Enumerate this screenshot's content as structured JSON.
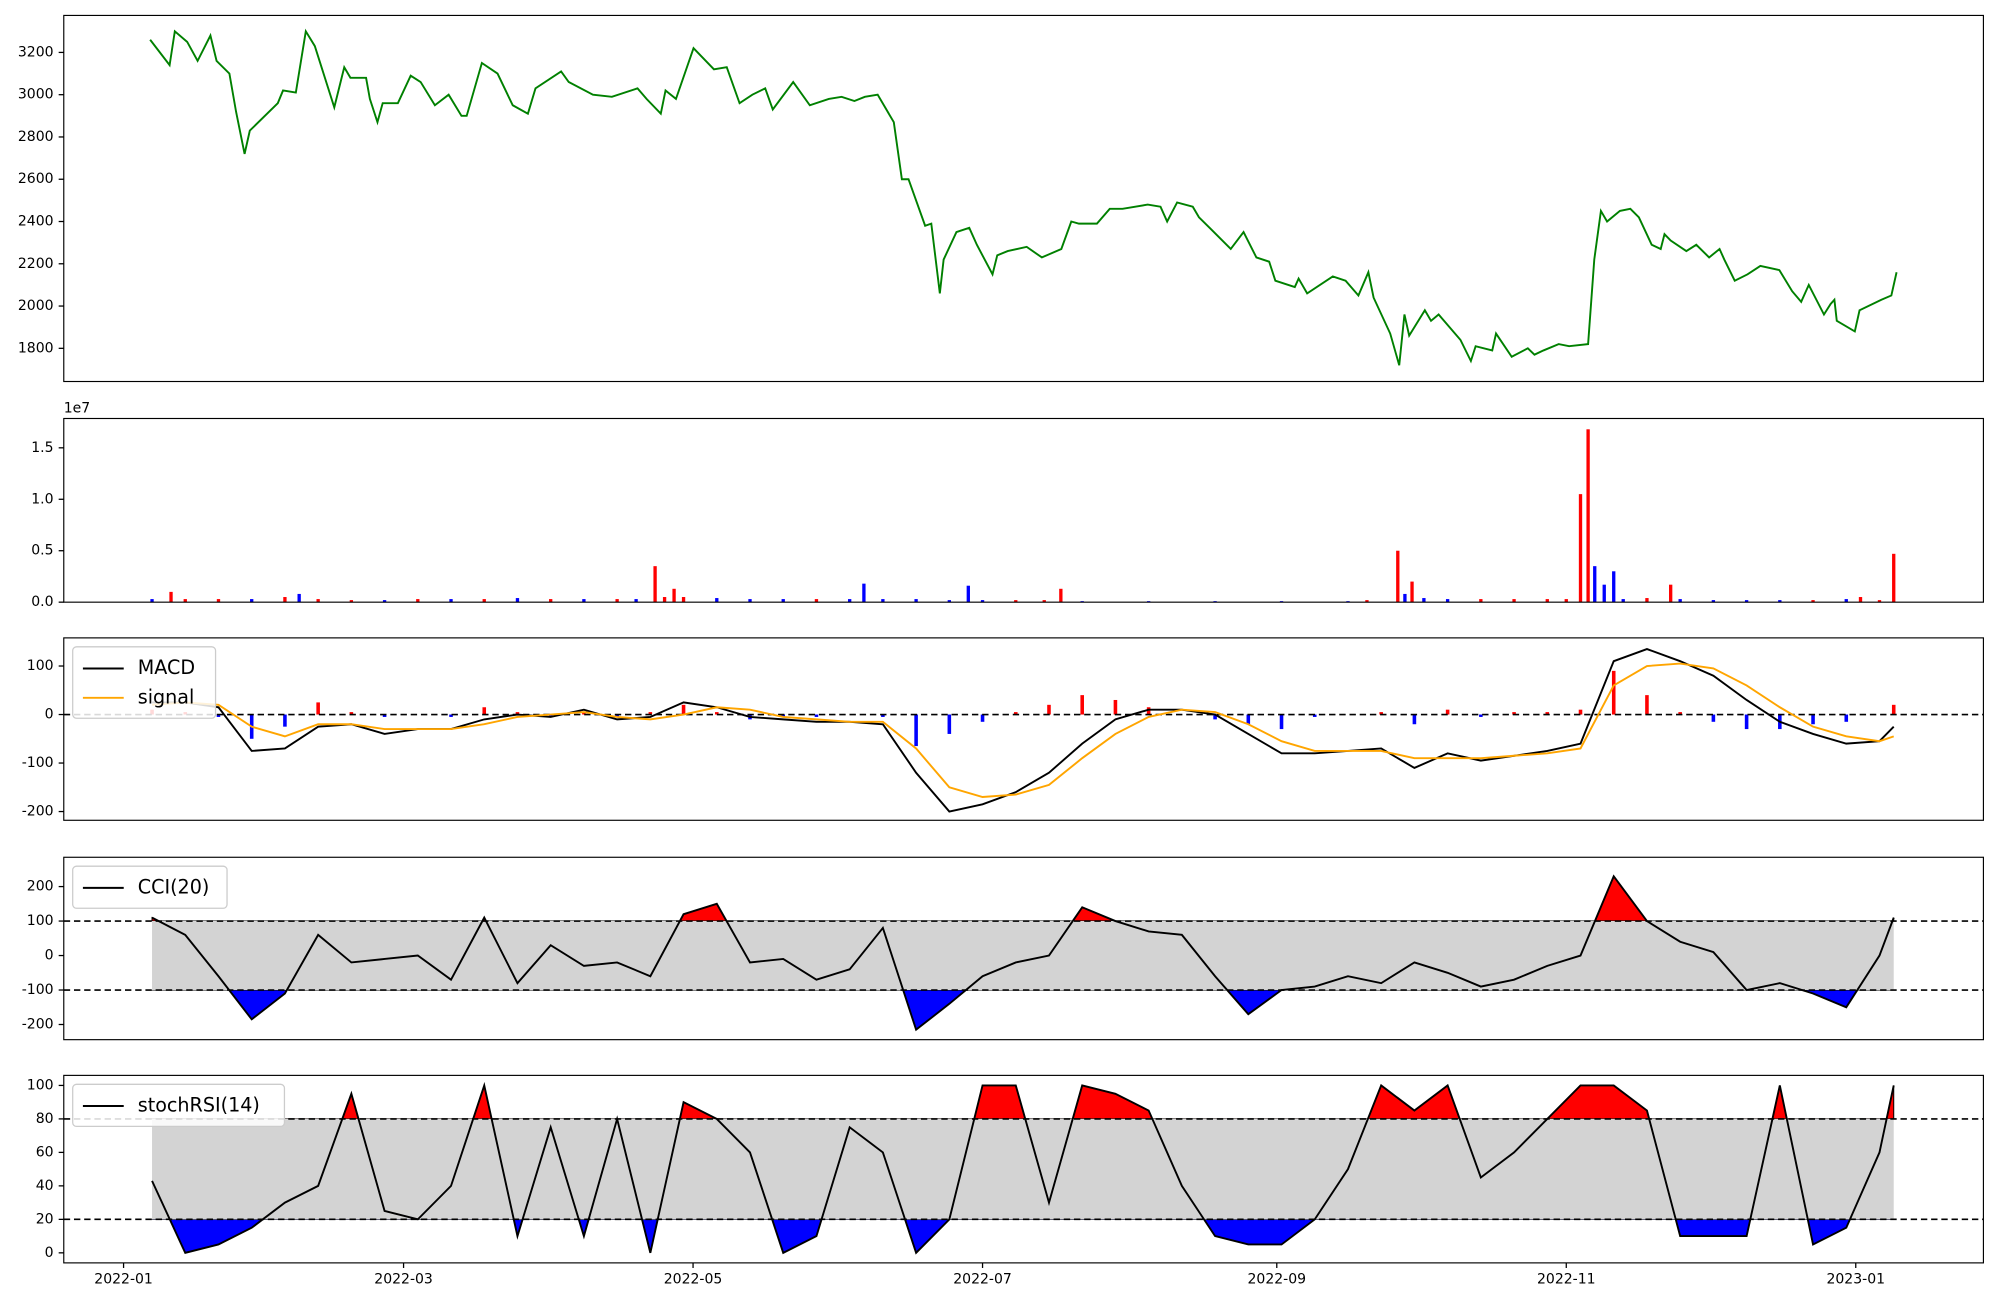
{
  "chart_data": [
    {
      "type": "line",
      "xlim": [
        -12.6,
        391.9
      ],
      "ylim": [
        1643,
        3375
      ],
      "yticks": [
        1800,
        2000,
        2200,
        2400,
        2600,
        2800,
        3000,
        3200
      ],
      "x": [
        5.6,
        9.7,
        10.8,
        13.4,
        15.6,
        18.3,
        19.6,
        22.3,
        23.7,
        25.5,
        26.6,
        32.5,
        33.6,
        36.3,
        38.4,
        40.3,
        44.4,
        46.5,
        47.8,
        51.1,
        51.9,
        53.5,
        54.6,
        57.8,
        60.5,
        62.6,
        65.6,
        68.5,
        71.2,
        72.3,
        75.5,
        78.8,
        82.0,
        85.2,
        86.8,
        92.2,
        93.8,
        98.9,
        102.9,
        108.3,
        110.2,
        113.2,
        114.2,
        116.4,
        120.1,
        124.4,
        127.1,
        129.8,
        132.5,
        135.2,
        136.8,
        141.1,
        144.6,
        148.6,
        151.3,
        154.0,
        156.2,
        158.9,
        162.3,
        164.0,
        165.4,
        168.9,
        170.2,
        172.0,
        172.8,
        175.5,
        178.2,
        179.8,
        183.1,
        184.1,
        186.3,
        190.3,
        193.5,
        197.6,
        199.7,
        201.3,
        205.1,
        207.8,
        210.5,
        213.2,
        215.8,
        218.5,
        219.9,
        222.0,
        225.3,
        226.6,
        229.3,
        233.3,
        236.0,
        238.7,
        241.4,
        242.7,
        246.8,
        247.6,
        249.4,
        254.8,
        257.5,
        260.2,
        262.3,
        263.4,
        266.9,
        268.8,
        269.9,
        270.9,
        274.2,
        275.5,
        277.1,
        281.7,
        283.9,
        284.9,
        288.4,
        289.2,
        292.5,
        295.9,
        297.3,
        299.2,
        302.4,
        304.6,
        308.6,
        309.9,
        311.3,
        312.6,
        315.3,
        317.5,
        319.3,
        322.0,
        323.9,
        324.7,
        326.0,
        329.3,
        331.4,
        334.1,
        336.3,
        337.3,
        339.5,
        342.2,
        344.9,
        348.9,
        351.6,
        353.5,
        355.1,
        358.3,
        359.7,
        360.5,
        361.0,
        364.8,
        365.8,
        370.4,
        372.5,
        373.6
      ],
      "series": [
        {
          "color": "#008000",
          "values": [
            3260,
            3140,
            3300,
            3250,
            3160,
            3280,
            3160,
            3100,
            2920,
            2720,
            2830,
            2960,
            3020,
            3010,
            3300,
            3230,
            2940,
            3130,
            3080,
            3080,
            2980,
            2870,
            2960,
            2960,
            3090,
            3060,
            2950,
            3000,
            2900,
            2900,
            3150,
            3100,
            2950,
            2910,
            3030,
            3110,
            3060,
            3000,
            2990,
            3030,
            2980,
            2910,
            3020,
            2980,
            3220,
            3120,
            3130,
            2960,
            3000,
            3030,
            2930,
            3060,
            2950,
            2980,
            2990,
            2970,
            2990,
            3000,
            2870,
            2600,
            2600,
            2380,
            2390,
            2060,
            2220,
            2350,
            2370,
            2290,
            2150,
            2240,
            2260,
            2280,
            2230,
            2270,
            2400,
            2390,
            2390,
            2460,
            2460,
            2470,
            2480,
            2470,
            2400,
            2490,
            2470,
            2420,
            2360,
            2270,
            2350,
            2230,
            2210,
            2120,
            2090,
            2130,
            2060,
            2140,
            2120,
            2050,
            2160,
            2040,
            1870,
            1720,
            1960,
            1860,
            1980,
            1930,
            1960,
            1840,
            1740,
            1810,
            1790,
            1870,
            1760,
            1800,
            1770,
            1790,
            1820,
            1810,
            1820,
            2220,
            2450,
            2400,
            2450,
            2460,
            2420,
            2290,
            2270,
            2340,
            2310,
            2260,
            2290,
            2230,
            2270,
            2220,
            2120,
            2150,
            2190,
            2170,
            2070,
            2020,
            2100,
            1960,
            2010,
            2030,
            1930,
            1880,
            1980,
            2030,
            2050,
            2160
          ]
        }
      ]
    },
    {
      "type": "bar",
      "xlim": [
        -12.6,
        391.9
      ],
      "ylim": [
        0,
        1.785
      ],
      "offset_label": "1e7",
      "yticks": [
        {
          "value": 0,
          "label": "0.0"
        },
        {
          "value": 0.5,
          "label": "0.5"
        },
        {
          "value": 1,
          "label": "1.0"
        },
        {
          "value": 1.5,
          "label": "1.5"
        }
      ],
      "x": [
        6,
        10,
        13,
        20,
        27,
        34,
        37,
        41,
        48,
        55,
        62,
        69,
        76,
        83,
        90,
        97,
        104,
        108,
        112,
        114,
        116,
        118,
        125,
        132,
        139,
        146,
        153,
        156,
        160,
        167,
        174,
        178,
        181,
        188,
        194,
        197.5,
        202,
        216,
        230,
        244,
        258,
        262,
        268.5,
        270,
        271.5,
        274,
        279,
        286,
        293,
        300,
        304,
        307,
        308.6,
        310,
        312,
        314,
        316,
        321,
        326,
        328,
        335,
        342,
        349,
        356,
        363,
        366,
        370,
        373
      ],
      "values": [
        0.03,
        0.1,
        0.03,
        0.03,
        0.03,
        0.05,
        0.08,
        0.03,
        0.02,
        0.02,
        0.03,
        0.03,
        0.03,
        0.04,
        0.03,
        0.03,
        0.03,
        0.03,
        0.35,
        0.05,
        0.13,
        0.05,
        0.04,
        0.03,
        0.03,
        0.03,
        0.03,
        0.18,
        0.03,
        0.03,
        0.02,
        0.16,
        0.02,
        0.02,
        0.02,
        0.13,
        0.01,
        0.01,
        0.01,
        0.01,
        0.01,
        0.02,
        0.5,
        0.08,
        0.2,
        0.04,
        0.03,
        0.03,
        0.03,
        0.03,
        0.03,
        1.05,
        1.68,
        0.35,
        0.17,
        0.3,
        0.03,
        0.04,
        0.17,
        0.03,
        0.02,
        0.02,
        0.02,
        0.02,
        0.03,
        0.05,
        0.02,
        0.47
      ],
      "colors": [
        "#0000ff",
        "#ff0000",
        "#ff0000",
        "#ff0000",
        "#0000ff",
        "#ff0000",
        "#0000ff",
        "#ff0000",
        "#ff0000",
        "#0000ff",
        "#ff0000",
        "#0000ff",
        "#ff0000",
        "#0000ff",
        "#ff0000",
        "#0000ff",
        "#ff0000",
        "#0000ff",
        "#ff0000",
        "#ff0000",
        "#ff0000",
        "#ff0000",
        "#0000ff",
        "#0000ff",
        "#0000ff",
        "#ff0000",
        "#0000ff",
        "#0000ff",
        "#0000ff",
        "#0000ff",
        "#0000ff",
        "#0000ff",
        "#0000ff",
        "#ff0000",
        "#ff0000",
        "#ff0000",
        "#0000ff",
        "#0000ff",
        "#0000ff",
        "#0000ff",
        "#0000ff",
        "#ff0000",
        "#ff0000",
        "#0000ff",
        "#ff0000",
        "#0000ff",
        "#0000ff",
        "#ff0000",
        "#ff0000",
        "#ff0000",
        "#ff0000",
        "#ff0000",
        "#ff0000",
        "#0000ff",
        "#0000ff",
        "#0000ff",
        "#0000ff",
        "#ff0000",
        "#ff0000",
        "#0000ff",
        "#0000ff",
        "#0000ff",
        "#0000ff",
        "#ff0000",
        "#0000ff",
        "#ff0000",
        "#ff0000",
        "#ff0000"
      ]
    },
    {
      "type": "line",
      "xlim": [
        -12.6,
        391.9
      ],
      "ylim": [
        -218,
        158
      ],
      "yticks": [
        -200,
        -100,
        0,
        100
      ],
      "hlines": [
        0
      ],
      "legend": "upper left",
      "x": [
        6,
        13,
        20,
        27,
        34,
        41,
        48,
        55,
        62,
        69,
        76,
        83,
        90,
        97,
        104,
        111,
        118,
        125,
        132,
        139,
        146,
        153,
        160,
        167,
        174,
        181,
        188,
        195,
        202,
        209,
        216,
        223,
        230,
        237,
        244,
        251,
        258,
        265,
        272,
        279,
        286,
        293,
        300,
        307,
        314,
        321,
        328,
        335,
        342,
        349,
        356,
        363,
        370,
        373
      ],
      "histogram": {
        "pos_color": "#ff0000",
        "neg_color": "#0000ff",
        "values": [
          10,
          5,
          -5,
          -50,
          -25,
          25,
          5,
          -5,
          0,
          -5,
          15,
          5,
          -5,
          5,
          -5,
          5,
          20,
          5,
          -10,
          -5,
          -5,
          0,
          -5,
          -65,
          -40,
          -15,
          5,
          20,
          40,
          30,
          15,
          0,
          -10,
          -20,
          -30,
          -5,
          0,
          5,
          -20,
          10,
          -5,
          5,
          5,
          10,
          90,
          40,
          5,
          -15,
          -30,
          -30,
          -20,
          -15,
          0,
          20
        ]
      },
      "series": [
        {
          "name": "MACD",
          "color": "#000000",
          "values": [
            25,
            25,
            15,
            -75,
            -70,
            -25,
            -20,
            -40,
            -30,
            -30,
            -10,
            0,
            -5,
            10,
            -10,
            -5,
            25,
            15,
            -5,
            -10,
            -15,
            -15,
            -20,
            -120,
            -200,
            -185,
            -160,
            -120,
            -60,
            -10,
            10,
            10,
            0,
            -40,
            -80,
            -80,
            -75,
            -70,
            -110,
            -80,
            -95,
            -85,
            -75,
            -60,
            110,
            135,
            110,
            80,
            30,
            -15,
            -40,
            -60,
            -55,
            -25
          ]
        },
        {
          "name": "signal",
          "color": "#ffa500",
          "values": [
            20,
            25,
            20,
            -25,
            -45,
            -20,
            -20,
            -30,
            -30,
            -30,
            -20,
            -5,
            0,
            5,
            -5,
            -10,
            0,
            15,
            10,
            -5,
            -10,
            -15,
            -15,
            -70,
            -150,
            -170,
            -165,
            -145,
            -90,
            -40,
            -5,
            10,
            5,
            -20,
            -55,
            -75,
            -75,
            -75,
            -90,
            -90,
            -90,
            -85,
            -80,
            -70,
            60,
            100,
            105,
            95,
            60,
            15,
            -25,
            -45,
            -55,
            -45
          ]
        }
      ]
    },
    {
      "type": "line",
      "xlim": [
        -12.6,
        391.9
      ],
      "ylim": [
        -244,
        285
      ],
      "yticks": [
        -200,
        -100,
        0,
        100,
        200
      ],
      "bands": [
        -100,
        100
      ],
      "band_color": "#d3d3d3",
      "over_color": "#ff0000",
      "under_color": "#0000ff",
      "legend": "upper left",
      "x": [
        6,
        13,
        20,
        27,
        34,
        41,
        48,
        55,
        62,
        69,
        76,
        83,
        90,
        97,
        104,
        111,
        118,
        125,
        132,
        139,
        146,
        153,
        160,
        167,
        174,
        181,
        188,
        195,
        202,
        209,
        216,
        223,
        230,
        237,
        244,
        251,
        258,
        265,
        272,
        279,
        286,
        293,
        300,
        307,
        314,
        321,
        328,
        335,
        342,
        349,
        356,
        363,
        370,
        373
      ],
      "series": [
        {
          "name": "CCI(20)",
          "color": "#000000",
          "values": [
            110,
            60,
            -60,
            -185,
            -110,
            60,
            -20,
            -10,
            0,
            -70,
            110,
            -80,
            30,
            -30,
            -20,
            -60,
            120,
            150,
            -20,
            -10,
            -70,
            -40,
            80,
            -215,
            -140,
            -60,
            -20,
            0,
            140,
            100,
            70,
            60,
            -60,
            -170,
            -100,
            -90,
            -60,
            -80,
            -20,
            -50,
            -90,
            -70,
            -30,
            0,
            230,
            100,
            40,
            10,
            -100,
            -80,
            -110,
            -150,
            0,
            110
          ]
        }
      ]
    },
    {
      "type": "line",
      "xlim": [
        -12.6,
        391.9
      ],
      "ylim": [
        -6,
        106
      ],
      "yticks": [
        0,
        20,
        40,
        60,
        80,
        100
      ],
      "bands": [
        20,
        80
      ],
      "band_color": "#d3d3d3",
      "over_color": "#ff0000",
      "under_color": "#0000ff",
      "legend": "upper left",
      "xticks": [
        {
          "value": 0,
          "label": "2022-01"
        },
        {
          "value": 59,
          "label": "2022-03"
        },
        {
          "value": 120,
          "label": "2022-05"
        },
        {
          "value": 181,
          "label": "2022-07"
        },
        {
          "value": 243,
          "label": "2022-09"
        },
        {
          "value": 304,
          "label": "2022-11"
        },
        {
          "value": 365,
          "label": "2023-01"
        }
      ],
      "x": [
        6,
        13,
        20,
        27,
        34,
        41,
        48,
        55,
        62,
        69,
        76,
        83,
        90,
        97,
        104,
        111,
        118,
        125,
        132,
        139,
        146,
        153,
        160,
        167,
        174,
        181,
        188,
        195,
        202,
        209,
        216,
        223,
        230,
        237,
        244,
        251,
        258,
        265,
        272,
        279,
        286,
        293,
        300,
        307,
        314,
        321,
        328,
        335,
        342,
        349,
        356,
        363,
        370,
        373
      ],
      "series": [
        {
          "name": "stochRSI(14)",
          "color": "#000000",
          "values": [
            43,
            0,
            5,
            15,
            30,
            40,
            95,
            25,
            20,
            40,
            100,
            10,
            75,
            10,
            80,
            0,
            90,
            80,
            60,
            0,
            10,
            75,
            60,
            0,
            20,
            100,
            100,
            30,
            100,
            95,
            85,
            40,
            10,
            5,
            5,
            20,
            50,
            100,
            85,
            100,
            45,
            60,
            80,
            100,
            100,
            85,
            10,
            10,
            10,
            100,
            5,
            15,
            60,
            100
          ]
        }
      ]
    }
  ]
}
